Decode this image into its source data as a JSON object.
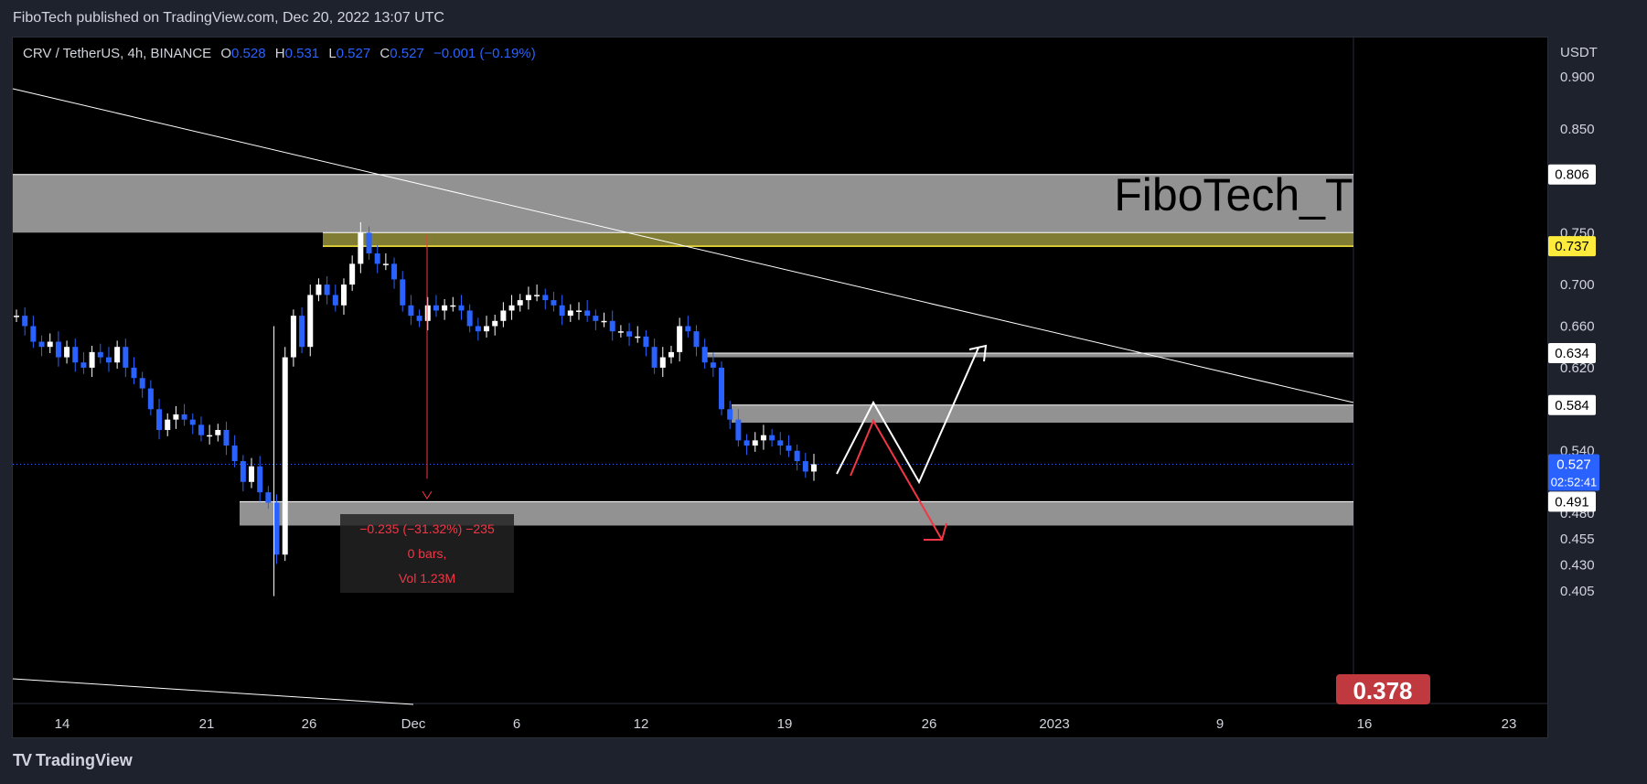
{
  "header": {
    "published_by": "FiboTech published on TradingView.com, Dec 20, 2022 13:07 UTC"
  },
  "legend": {
    "symbol": "CRV / TetherUS, 4h, BINANCE",
    "open_label": "O",
    "open": "0.528",
    "high_label": "H",
    "high": "0.531",
    "low_label": "L",
    "low": "0.527",
    "close_label": "C",
    "close": "0.527",
    "change": "−0.001 (−0.19%)"
  },
  "watermark": "FiboTech_Trade",
  "footer": {
    "brand": "TradingView",
    "brand_icon": "tradingview-logo-icon"
  },
  "measure": {
    "line1": "−0.235 (−31.32%) −235",
    "line2": "0 bars,",
    "line3": "Vol 1.23M"
  },
  "fib_badge": "0.378",
  "colors": {
    "up": "#ffffff",
    "down": "#2962ff",
    "zone": "#a0a0a0",
    "yellow": "#ffeb3b",
    "red": "#f23645",
    "price_badge": "#2962ff"
  },
  "chart_data": {
    "type": "candlestick",
    "y_axis_unit": "USDT",
    "ylim": [
      0.39,
      0.93
    ],
    "x_ticks": [
      "14",
      "21",
      "26",
      "Dec",
      "6",
      "12",
      "19",
      "26",
      "2023",
      "9",
      "16",
      "23"
    ],
    "y_ticks": [
      "0.900",
      "0.850",
      "0.750",
      "0.700",
      "0.660",
      "0.620",
      "0.540",
      "0.480",
      "0.455",
      "0.430",
      "0.405"
    ],
    "price_labels": [
      {
        "value": "0.806",
        "style": "white"
      },
      {
        "value": "0.737",
        "style": "yellow"
      },
      {
        "value": "0.634",
        "style": "white"
      },
      {
        "value": "0.584",
        "style": "white"
      },
      {
        "value": "0.491",
        "style": "white"
      }
    ],
    "current_price": "0.527",
    "countdown": "02:52:41",
    "zones": [
      {
        "from": 0.75,
        "to": 0.806,
        "color": "gray"
      },
      {
        "from": 0.737,
        "to": 0.75,
        "color": "yellow"
      },
      {
        "from": 0.63,
        "to": 0.634,
        "color": "gray"
      },
      {
        "from": 0.567,
        "to": 0.584,
        "color": "gray"
      },
      {
        "from": 0.468,
        "to": 0.491,
        "color": "gray"
      }
    ],
    "series": [
      {
        "values": [
          0.67,
          0.66,
          0.645,
          0.64,
          0.645,
          0.63,
          0.64,
          0.625,
          0.62,
          0.635,
          0.63,
          0.625,
          0.64,
          0.62,
          0.61,
          0.6,
          0.58,
          0.56,
          0.57,
          0.575,
          0.57,
          0.565,
          0.555,
          0.555,
          0.56,
          0.545,
          0.53,
          0.51,
          0.525,
          0.5,
          0.49,
          0.44,
          0.63,
          0.67,
          0.64,
          0.69,
          0.7,
          0.69,
          0.68,
          0.7,
          0.72,
          0.75,
          0.73,
          0.72,
          0.72,
          0.705,
          0.68,
          0.67,
          0.665,
          0.68,
          0.675,
          0.68,
          0.68,
          0.675,
          0.66,
          0.655,
          0.66,
          0.665,
          0.675,
          0.68,
          0.685,
          0.69,
          0.69,
          0.685,
          0.68,
          0.67,
          0.675,
          0.675,
          0.67,
          0.665,
          0.665,
          0.655,
          0.655,
          0.65,
          0.65,
          0.64,
          0.62,
          0.63,
          0.635,
          0.66,
          0.655,
          0.64,
          0.625,
          0.62,
          0.58,
          0.57,
          0.55,
          0.545,
          0.55,
          0.555,
          0.55,
          0.545,
          0.54,
          0.53,
          0.52,
          0.527
        ]
      }
    ]
  }
}
